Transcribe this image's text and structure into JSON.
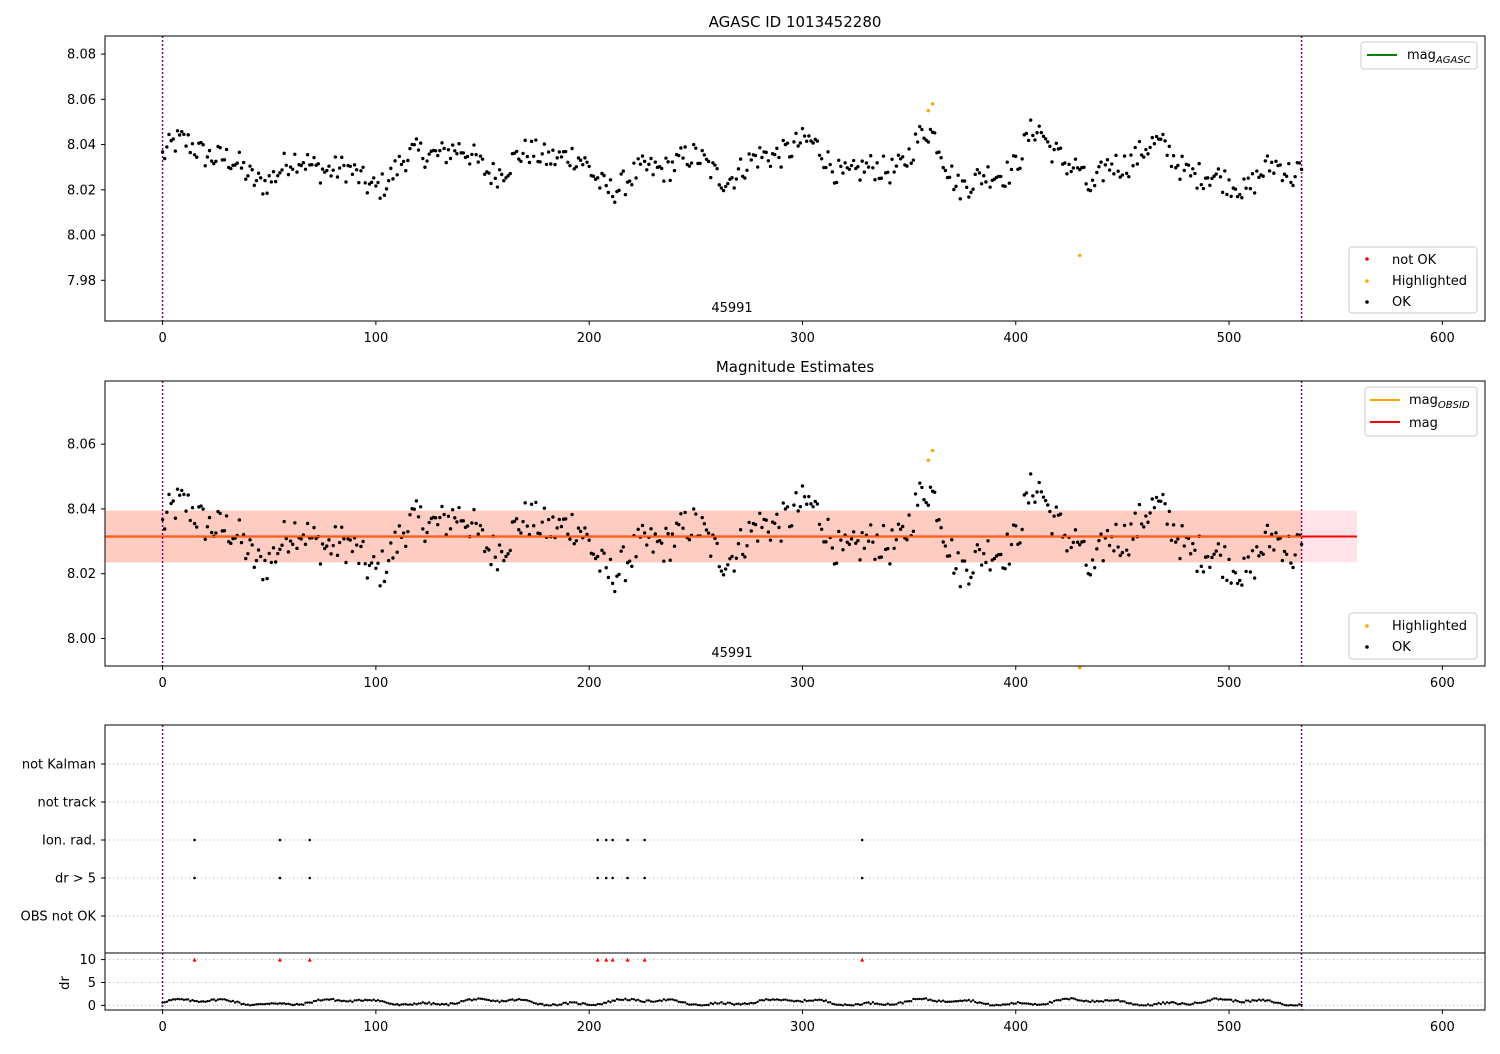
{
  "chart_data": [
    {
      "type": "scatter",
      "title": "AGASC ID 1013452280",
      "obsid_label": "45991",
      "xlim": [
        -27,
        620
      ],
      "ylim": [
        7.962,
        8.088
      ],
      "xticks": [
        "0",
        "100",
        "200",
        "300",
        "400",
        "500",
        "600"
      ],
      "yticks": [
        "7.98",
        "8.00",
        "8.02",
        "8.04",
        "8.06",
        "8.08"
      ],
      "vlines": [
        0,
        534
      ],
      "legend_lines": [
        {
          "label": "mag",
          "sub": "AGASC",
          "color": "#008000"
        }
      ],
      "legend_points": [
        {
          "label": "not OK",
          "color": "#ff0000"
        },
        {
          "label": "Highlighted",
          "color": "#ffa500"
        },
        {
          "label": "OK",
          "color": "#000000"
        }
      ],
      "highlighted": [
        [
          359,
          8.055
        ],
        [
          361,
          8.058
        ],
        [
          430,
          7.991
        ]
      ]
    },
    {
      "type": "scatter",
      "title": "Magnitude Estimates",
      "obsid_label": "45991",
      "xlim": [
        -27,
        620
      ],
      "ylim": [
        7.9915,
        8.0795
      ],
      "xticks": [
        "0",
        "100",
        "200",
        "300",
        "400",
        "500",
        "600"
      ],
      "yticks": [
        "8.00",
        "8.02",
        "8.04",
        "8.06"
      ],
      "vlines": [
        0,
        534
      ],
      "mean_mag": 8.0315,
      "band": [
        8.0235,
        8.0395
      ],
      "band_x": [
        -27,
        560
      ],
      "legend_lines": [
        {
          "label": "mag",
          "sub": "OBSID",
          "color": "#ffa500"
        },
        {
          "label": "mag",
          "sub": "",
          "color": "#ff0000"
        }
      ],
      "legend_points": [
        {
          "label": "Highlighted",
          "color": "#ffa500"
        },
        {
          "label": "OK",
          "color": "#000000"
        }
      ],
      "highlighted": [
        [
          359,
          8.055
        ],
        [
          361,
          8.058
        ],
        [
          430,
          7.991
        ]
      ]
    },
    {
      "type": "scatter",
      "xlim": [
        -27,
        620
      ],
      "xticks": [
        "0",
        "100",
        "200",
        "300",
        "400",
        "500",
        "600"
      ],
      "flag_labels": [
        "not Kalman",
        "not track",
        "Ion. rad.",
        "dr > 5",
        "OBS not OK"
      ],
      "flag_x": [
        15,
        55,
        69,
        204,
        208,
        211,
        218,
        226,
        328
      ],
      "flag_rows_with_points": [
        "Ion. rad.",
        "dr > 5"
      ],
      "vlines": [
        0,
        534
      ],
      "dr_ylabel": "dr",
      "dr_yticks": [
        "0",
        "5",
        "10"
      ],
      "dr_ylim": [
        -1,
        11
      ],
      "dr_clipped_x": [
        15,
        55,
        69,
        204,
        208,
        211,
        218,
        226,
        328
      ],
      "dr_clipped_value": 10
    }
  ],
  "colors": {
    "ok": "#000000",
    "highlighted": "#ffa500",
    "not_ok": "#ff0000",
    "vline": "#800080",
    "band_fill": "#ffc0cb",
    "band_overlap": "#ffa07a"
  }
}
